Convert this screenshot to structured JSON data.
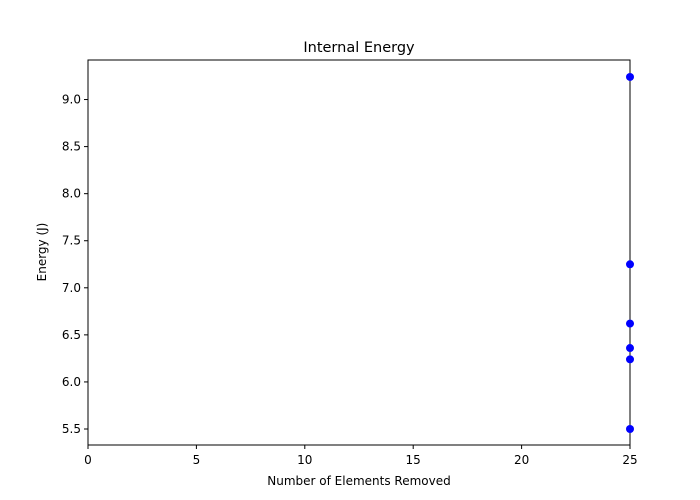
{
  "chart_data": {
    "type": "scatter",
    "title": "Internal Energy",
    "xlabel": "Number of Elements Removed",
    "ylabel": "Energy (J)",
    "xlim": [
      0,
      25
    ],
    "ylim": [
      5.33,
      9.42
    ],
    "xticks": [
      0,
      5,
      10,
      15,
      20,
      25
    ],
    "xtick_labels": [
      "0",
      "5",
      "10",
      "15",
      "20",
      "25"
    ],
    "yticks": [
      5.5,
      6.0,
      6.5,
      7.0,
      7.5,
      8.0,
      8.5,
      9.0
    ],
    "ytick_labels": [
      "5.5",
      "6.0",
      "6.5",
      "7.0",
      "7.5",
      "8.0",
      "8.5",
      "9.0"
    ],
    "grid": false,
    "series": [
      {
        "color": "#0000ff",
        "points": [
          {
            "x": 25,
            "y": 9.24
          },
          {
            "x": 25,
            "y": 7.25
          },
          {
            "x": 25,
            "y": 6.62
          },
          {
            "x": 25,
            "y": 6.36
          },
          {
            "x": 25,
            "y": 6.24
          },
          {
            "x": 25,
            "y": 5.5
          }
        ]
      }
    ]
  }
}
